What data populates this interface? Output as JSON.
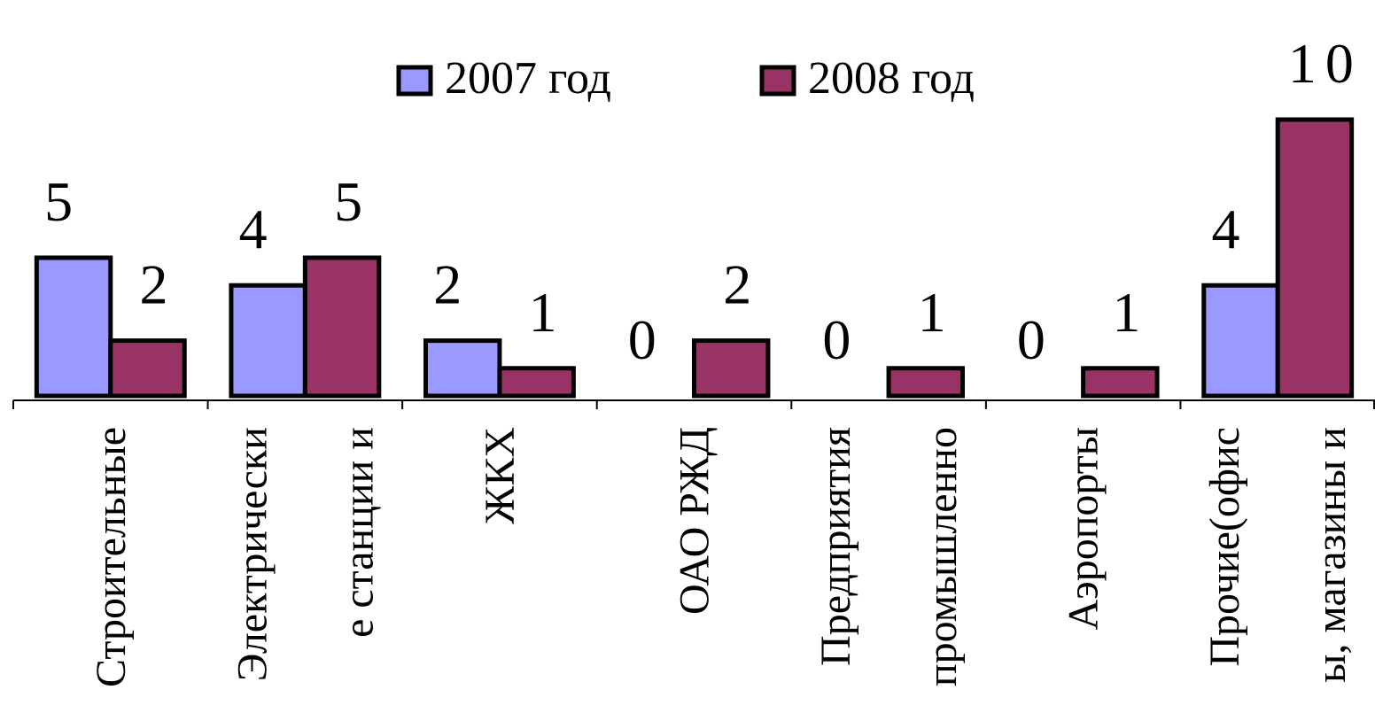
{
  "chart_data": {
    "type": "bar",
    "categories": [
      [
        "Строительные"
      ],
      [
        "Электрически",
        "е станции и"
      ],
      [
        "ЖКХ"
      ],
      [
        "ОАО РЖД"
      ],
      [
        "Предприятия",
        "промышленно"
      ],
      [
        "Аэропорты"
      ],
      [
        "Прочие(офис",
        "ы, магазины и"
      ]
    ],
    "series": [
      {
        "name": "2007 год",
        "color": "#9999ff",
        "values": [
          5,
          4,
          2,
          0,
          0,
          0,
          4
        ]
      },
      {
        "name": "2008 год",
        "color": "#993366",
        "values": [
          2,
          5,
          1,
          2,
          1,
          1,
          10
        ]
      }
    ],
    "ylim": [
      0,
      10
    ],
    "legend": "top"
  }
}
